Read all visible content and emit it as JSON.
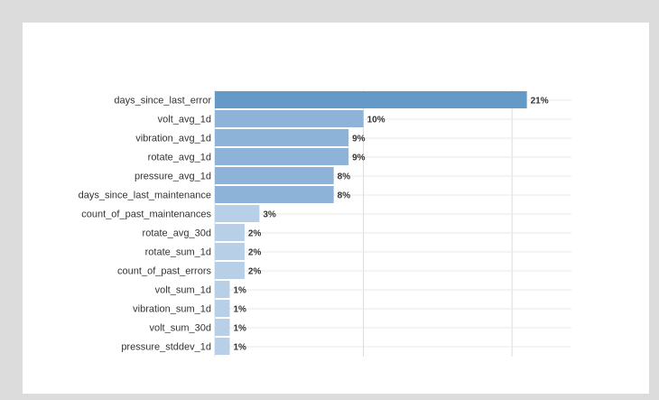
{
  "chart_data": {
    "type": "bar",
    "orientation": "horizontal",
    "categories": [
      "days_since_last_error",
      "volt_avg_1d",
      "vibration_avg_1d",
      "rotate_avg_1d",
      "pressure_avg_1d",
      "days_since_last_maintenance",
      "count_of_past_maintenances",
      "rotate_avg_30d",
      "rotate_sum_1d",
      "count_of_past_errors",
      "volt_sum_1d",
      "vibration_sum_1d",
      "volt_sum_30d",
      "pressure_stddev_1d"
    ],
    "values": [
      0.21,
      0.1,
      0.09,
      0.09,
      0.08,
      0.08,
      0.03,
      0.02,
      0.02,
      0.02,
      0.01,
      0.01,
      0.01,
      0.01
    ],
    "value_labels": [
      "21%",
      "10%",
      "9%",
      "9%",
      "8%",
      "8%",
      "3%",
      "2%",
      "2%",
      "2%",
      "1%",
      "1%",
      "1%",
      "1%"
    ],
    "bar_colors": {
      "dark": "#6499c8",
      "medium": "#8db3d9",
      "light": "#b7d0e8"
    },
    "grid": true,
    "xlim": [
      0,
      0.24
    ],
    "title": "",
    "xlabel": "",
    "ylabel": ""
  }
}
